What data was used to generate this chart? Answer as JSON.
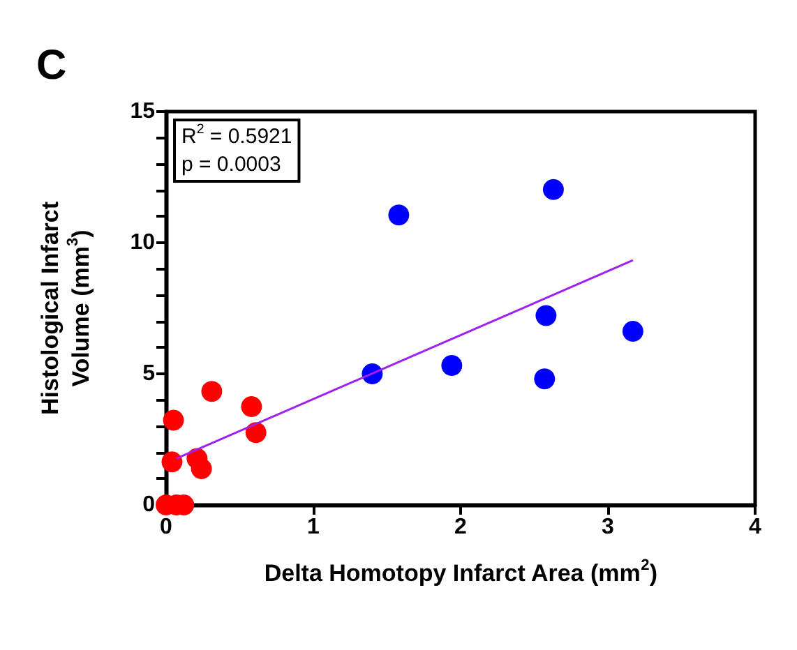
{
  "chart_data": {
    "type": "scatter",
    "xlabel": "Delta Homotopy Infarct Area (mm$^{2}$)",
    "ylabel": "Histological Infarct\nVolume (mm$^{3}$)",
    "annotations": [
      "C",
      "R$^{2}$ = 0.5921\np = 0.0003"
    ],
    "series": [
      {
        "color": "#ff0000",
        "x": [
          0,
          0.07,
          0.12,
          0.04,
          0.05,
          0.21,
          0.24,
          0.31,
          0.58,
          0.61
        ],
        "values": [
          0,
          0,
          0,
          1.64,
          3.23,
          1.77,
          1.38,
          4.33,
          3.75,
          2.76
        ]
      },
      {
        "color": "#0000ff",
        "x": [
          1.4,
          1.58,
          1.94,
          2.57,
          2.58,
          2.63,
          3.17
        ],
        "values": [
          5.0,
          11.06,
          5.32,
          4.81,
          7.22,
          12.03,
          6.62
        ]
      },
      {
        "type": "line",
        "marker": "none",
        "color": "#a020f0",
        "x": [
          0.07,
          3.17
        ],
        "values": [
          1.77,
          9.33
        ]
      }
    ],
    "marker": "circle",
    "xlim": [
      0,
      4
    ],
    "xticks": [
      0,
      1,
      2,
      3,
      4
    ],
    "ylim": [
      0,
      15
    ],
    "yticks": [
      0,
      {
        "value": 1,
        "label": null
      },
      {
        "value": 2,
        "label": null
      },
      {
        "value": 3,
        "label": null
      },
      {
        "value": 4,
        "label": null
      },
      5,
      {
        "value": 6,
        "label": null
      },
      {
        "value": 7,
        "label": null
      },
      {
        "value": 8,
        "label": null
      },
      {
        "value": 9,
        "label": null
      },
      10,
      {
        "value": 11,
        "label": null
      },
      {
        "value": 12,
        "label": null
      },
      {
        "value": 13,
        "label": null
      },
      {
        "value": 14,
        "label": null
      },
      15
    ],
    "grid": false
  }
}
